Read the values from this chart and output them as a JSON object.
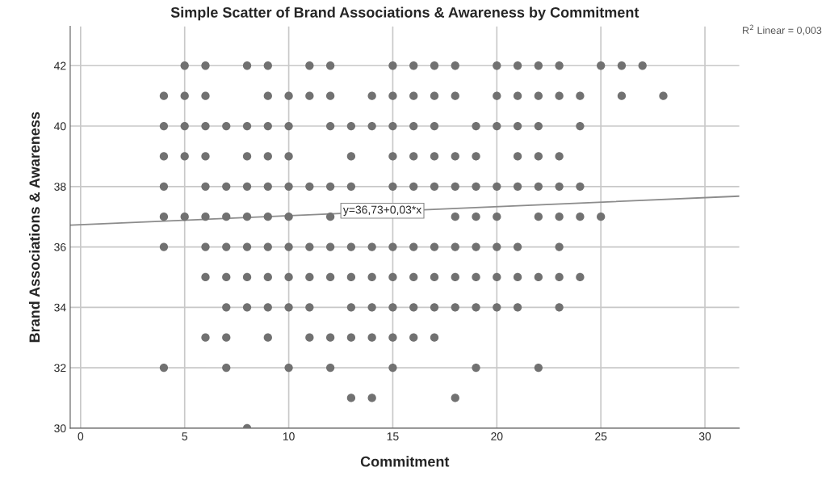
{
  "chart_data": {
    "type": "scatter",
    "title": "Simple Scatter of Brand Associations & Awareness by Commitment",
    "xlabel": "Commitment",
    "ylabel": "Brand Associations & Awareness",
    "xlim": [
      -0.5,
      31.65
    ],
    "ylim": [
      30,
      43.3
    ],
    "xticks": [
      0,
      5,
      10,
      15,
      20,
      25,
      30
    ],
    "yticks": [
      30,
      32,
      34,
      36,
      38,
      40,
      42
    ],
    "grid": true,
    "legend": false,
    "series": [
      {
        "color": "#717171",
        "marker": "circle",
        "x": [
          5,
          6,
          8,
          9,
          11,
          12,
          15,
          16,
          17,
          18,
          20,
          21,
          22,
          23,
          25,
          26,
          27,
          4,
          5,
          6,
          9,
          10,
          11,
          12,
          14,
          15,
          16,
          17,
          18,
          20,
          21,
          22,
          23,
          24,
          26,
          28,
          4,
          5,
          6,
          7,
          8,
          9,
          10,
          12,
          13,
          14,
          15,
          16,
          17,
          19,
          20,
          21,
          22,
          24,
          4,
          5,
          6,
          8,
          9,
          10,
          13,
          15,
          16,
          17,
          18,
          19,
          21,
          22,
          23,
          4,
          6,
          7,
          8,
          9,
          10,
          11,
          12,
          13,
          15,
          16,
          17,
          18,
          19,
          20,
          21,
          22,
          23,
          24,
          4,
          5,
          6,
          7,
          8,
          9,
          10,
          12,
          18,
          19,
          20,
          22,
          23,
          24,
          25,
          4,
          6,
          7,
          8,
          9,
          10,
          11,
          12,
          13,
          14,
          15,
          16,
          17,
          18,
          19,
          20,
          21,
          23,
          6,
          7,
          8,
          9,
          10,
          11,
          12,
          13,
          14,
          15,
          16,
          17,
          18,
          19,
          20,
          21,
          22,
          23,
          24,
          7,
          8,
          9,
          10,
          11,
          13,
          14,
          15,
          16,
          17,
          18,
          19,
          20,
          21,
          23,
          6,
          7,
          9,
          11,
          12,
          13,
          14,
          15,
          16,
          17,
          4,
          7,
          10,
          12,
          15,
          19,
          22,
          13,
          14,
          18,
          8
        ],
        "values": [
          42,
          42,
          42,
          42,
          42,
          42,
          42,
          42,
          42,
          42,
          42,
          42,
          42,
          42,
          42,
          42,
          42,
          41,
          41,
          41,
          41,
          41,
          41,
          41,
          41,
          41,
          41,
          41,
          41,
          41,
          41,
          41,
          41,
          41,
          41,
          41,
          40,
          40,
          40,
          40,
          40,
          40,
          40,
          40,
          40,
          40,
          40,
          40,
          40,
          40,
          40,
          40,
          40,
          40,
          39,
          39,
          39,
          39,
          39,
          39,
          39,
          39,
          39,
          39,
          39,
          39,
          39,
          39,
          39,
          38,
          38,
          38,
          38,
          38,
          38,
          38,
          38,
          38,
          38,
          38,
          38,
          38,
          38,
          38,
          38,
          38,
          38,
          38,
          37,
          37,
          37,
          37,
          37,
          37,
          37,
          37,
          37,
          37,
          37,
          37,
          37,
          37,
          37,
          36,
          36,
          36,
          36,
          36,
          36,
          36,
          36,
          36,
          36,
          36,
          36,
          36,
          36,
          36,
          36,
          36,
          36,
          35,
          35,
          35,
          35,
          35,
          35,
          35,
          35,
          35,
          35,
          35,
          35,
          35,
          35,
          35,
          35,
          35,
          35,
          35,
          34,
          34,
          34,
          34,
          34,
          34,
          34,
          34,
          34,
          34,
          34,
          34,
          34,
          34,
          34,
          33,
          33,
          33,
          33,
          33,
          33,
          33,
          33,
          33,
          33,
          32,
          32,
          32,
          32,
          32,
          32,
          32,
          31,
          31,
          31,
          30
        ]
      },
      {
        "type": "line",
        "color": "#8c8c8c",
        "marker": "none",
        "x": [
          -0.5,
          31.65
        ],
        "values": [
          36.72,
          37.68
        ]
      }
    ],
    "annotations": [
      {
        "text": "y=36,73+0,03*x",
        "x": 14.5,
        "y": 37.2
      },
      "R$^{2}$ Linear = 0,003"
    ]
  }
}
